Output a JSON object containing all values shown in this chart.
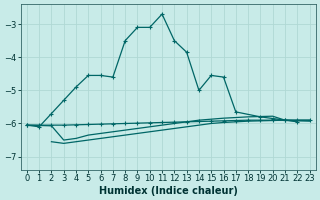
{
  "xlabel": "Humidex (Indice chaleur)",
  "bg_color": "#c8ebe8",
  "grid_color": "#b0d8d4",
  "line_color": "#006666",
  "xlim": [
    -0.5,
    23.5
  ],
  "ylim": [
    -7.4,
    -2.4
  ],
  "yticks": [
    -7,
    -6,
    -5,
    -4,
    -3
  ],
  "xticks": [
    0,
    1,
    2,
    3,
    4,
    5,
    6,
    7,
    8,
    9,
    10,
    11,
    12,
    13,
    14,
    15,
    16,
    17,
    18,
    19,
    20,
    21,
    22,
    23
  ],
  "main_x": [
    0,
    1,
    2,
    3,
    4,
    5,
    6,
    7,
    8,
    9,
    10,
    11,
    12,
    13,
    14,
    15,
    16,
    17,
    19,
    20,
    21,
    22
  ],
  "main_y": [
    -6.05,
    -6.1,
    -5.7,
    -5.3,
    -4.9,
    -4.55,
    -4.55,
    -4.6,
    -3.5,
    -3.1,
    -3.1,
    -2.7,
    -3.5,
    -3.85,
    -5.0,
    -4.55,
    -4.6,
    -5.65,
    -5.8,
    -5.85,
    -5.9,
    -5.95
  ],
  "line1_x": [
    0,
    1,
    2,
    3,
    4,
    5,
    6,
    7,
    8,
    9,
    10,
    11,
    12,
    13,
    14,
    15,
    16,
    17,
    18,
    19,
    20,
    21,
    22,
    23
  ],
  "line1_y": [
    -6.05,
    -6.05,
    -6.05,
    -6.05,
    -6.04,
    -6.03,
    -6.02,
    -6.01,
    -6.0,
    -5.99,
    -5.98,
    -5.97,
    -5.96,
    -5.95,
    -5.94,
    -5.93,
    -5.92,
    -5.91,
    -5.9,
    -5.9,
    -5.9,
    -5.9,
    -5.9,
    -5.9
  ],
  "line2_x": [
    0,
    1,
    2,
    3,
    4,
    5,
    6,
    7,
    8,
    9,
    10,
    11,
    12,
    13,
    14,
    15,
    16,
    17,
    18,
    19,
    20,
    21,
    22,
    23
  ],
  "line2_y": [
    -6.05,
    -6.06,
    -6.07,
    -6.5,
    -6.45,
    -6.35,
    -6.3,
    -6.25,
    -6.2,
    -6.15,
    -6.1,
    -6.05,
    -6.0,
    -5.95,
    -5.9,
    -5.87,
    -5.84,
    -5.82,
    -5.8,
    -5.79,
    -5.78,
    -5.9,
    -5.92,
    -5.93
  ],
  "line3_x": [
    2,
    3,
    4,
    5,
    6,
    7,
    8,
    9,
    10,
    11,
    12,
    13,
    14,
    15,
    16,
    17,
    18,
    19,
    20,
    21,
    22,
    23
  ],
  "line3_y": [
    -6.55,
    -6.6,
    -6.55,
    -6.5,
    -6.45,
    -6.4,
    -6.35,
    -6.3,
    -6.25,
    -6.2,
    -6.15,
    -6.1,
    -6.05,
    -6.0,
    -5.97,
    -5.95,
    -5.93,
    -5.92,
    -5.91,
    -5.9,
    -5.9,
    -5.9
  ],
  "marker_size": 2.5,
  "line_width": 0.9,
  "tick_labelsize": 6,
  "xlabel_fontsize": 7
}
